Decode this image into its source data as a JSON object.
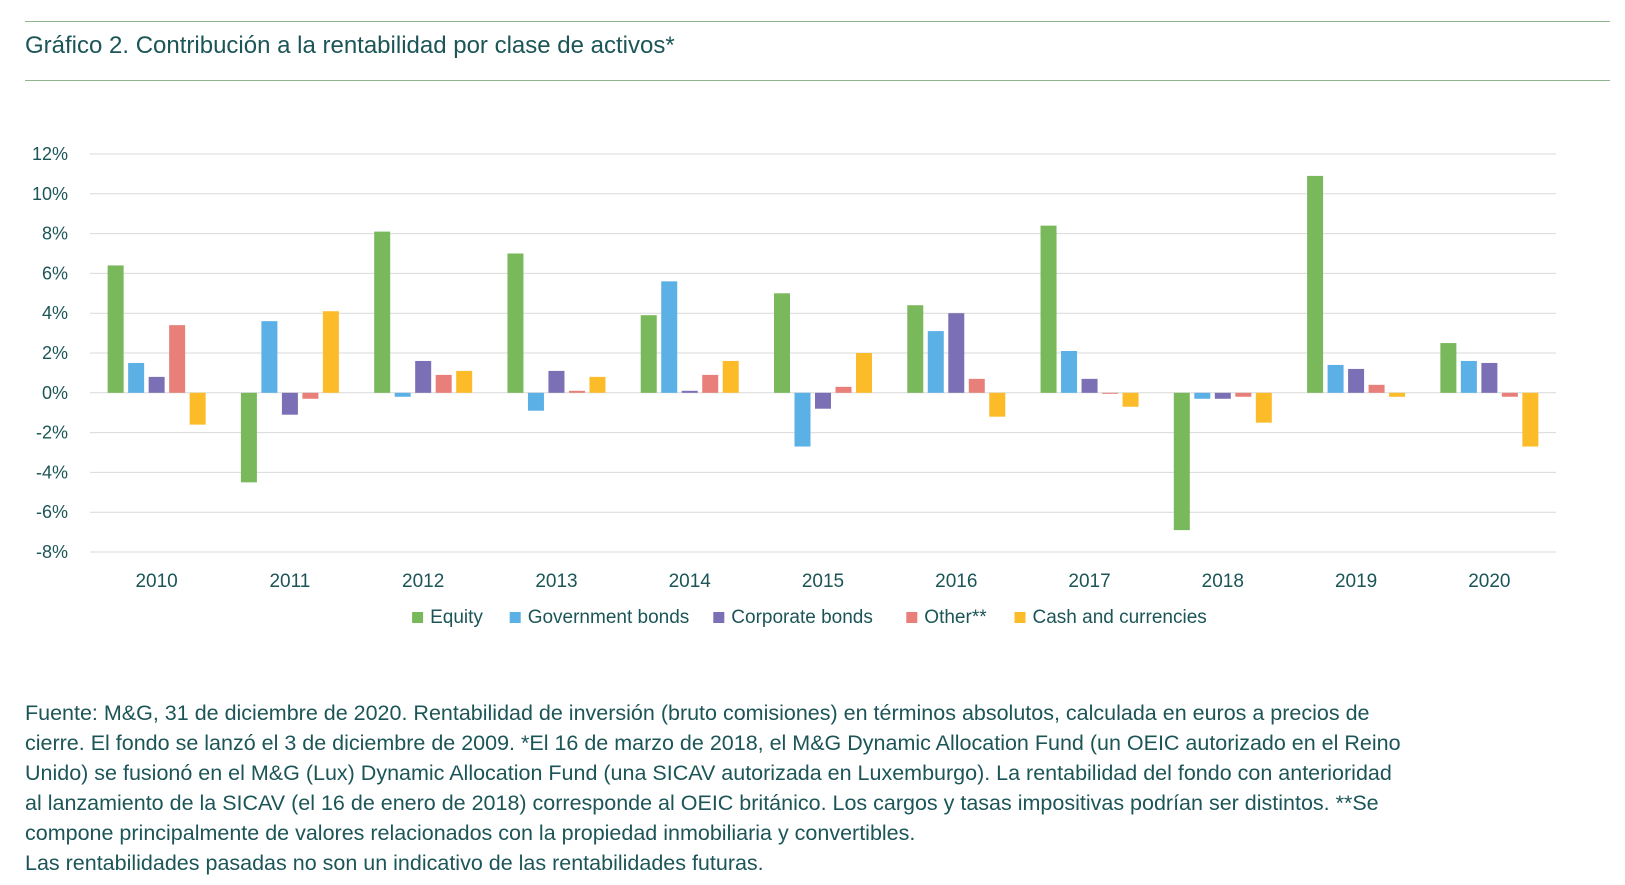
{
  "title": "Gráfico 2. Contribución a la rentabilidad por clase de activos*",
  "chart_data": {
    "type": "bar",
    "categories": [
      "2010",
      "2011",
      "2012",
      "2013",
      "2014",
      "2015",
      "2016",
      "2017",
      "2018",
      "2019",
      "2020"
    ],
    "ylim": [
      -8,
      12
    ],
    "yticks": [
      -8,
      -6,
      -4,
      -2,
      0,
      2,
      4,
      6,
      8,
      10,
      12
    ],
    "ytick_suffix": "%",
    "grid": true,
    "legend_position": "bottom",
    "series": [
      {
        "name": "Equity",
        "color": "#7ab85c",
        "values": [
          6.4,
          -4.5,
          8.1,
          7.0,
          3.9,
          5.0,
          4.4,
          8.4,
          -6.9,
          10.9,
          2.5
        ]
      },
      {
        "name": "Government bonds",
        "color": "#5bb0e6",
        "values": [
          1.5,
          3.6,
          -0.2,
          -0.9,
          5.6,
          -2.7,
          3.1,
          2.1,
          -0.3,
          1.4,
          1.6
        ]
      },
      {
        "name": "Corporate bonds",
        "color": "#7b6fb5",
        "values": [
          0.8,
          -1.1,
          1.6,
          1.1,
          0.1,
          -0.8,
          4.0,
          0.7,
          -0.3,
          1.2,
          1.5
        ]
      },
      {
        "name": "Other**",
        "color": "#e88079",
        "values": [
          3.4,
          -0.3,
          0.9,
          0.1,
          0.9,
          0.3,
          0.7,
          0.0,
          -0.2,
          0.4,
          -0.2
        ]
      },
      {
        "name": "Cash and currencies",
        "color": "#fcbc2a",
        "values": [
          -1.6,
          4.1,
          1.1,
          0.8,
          1.6,
          2.0,
          -1.2,
          -0.7,
          -1.5,
          -0.2,
          -2.7
        ]
      }
    ]
  },
  "footnote": [
    "Fuente: M&G, 31 de diciembre de 2020. Rentabilidad de inversión (bruto comisiones) en términos absolutos, calculada en euros a precios de",
    "cierre. El fondo se lanzó el 3 de diciembre de 2009. *El 16 de marzo de 2018, el M&G Dynamic Allocation Fund (un OEIC autorizado en el Reino",
    "Unido) se fusionó en el M&G (Lux) Dynamic Allocation Fund (una SICAV autorizada en Luxemburgo). La rentabilidad del fondo con anterioridad",
    "al lanzamiento de la SICAV (el 16 de enero de 2018) corresponde al OEIC británico. Los cargos y tasas impositivas podrían ser distintos. **Se",
    "compone principalmente de valores relacionados con la propiedad inmobiliaria y convertibles.",
    "Las rentabilidades pasadas no son un indicativo de las rentabilidades futuras."
  ]
}
